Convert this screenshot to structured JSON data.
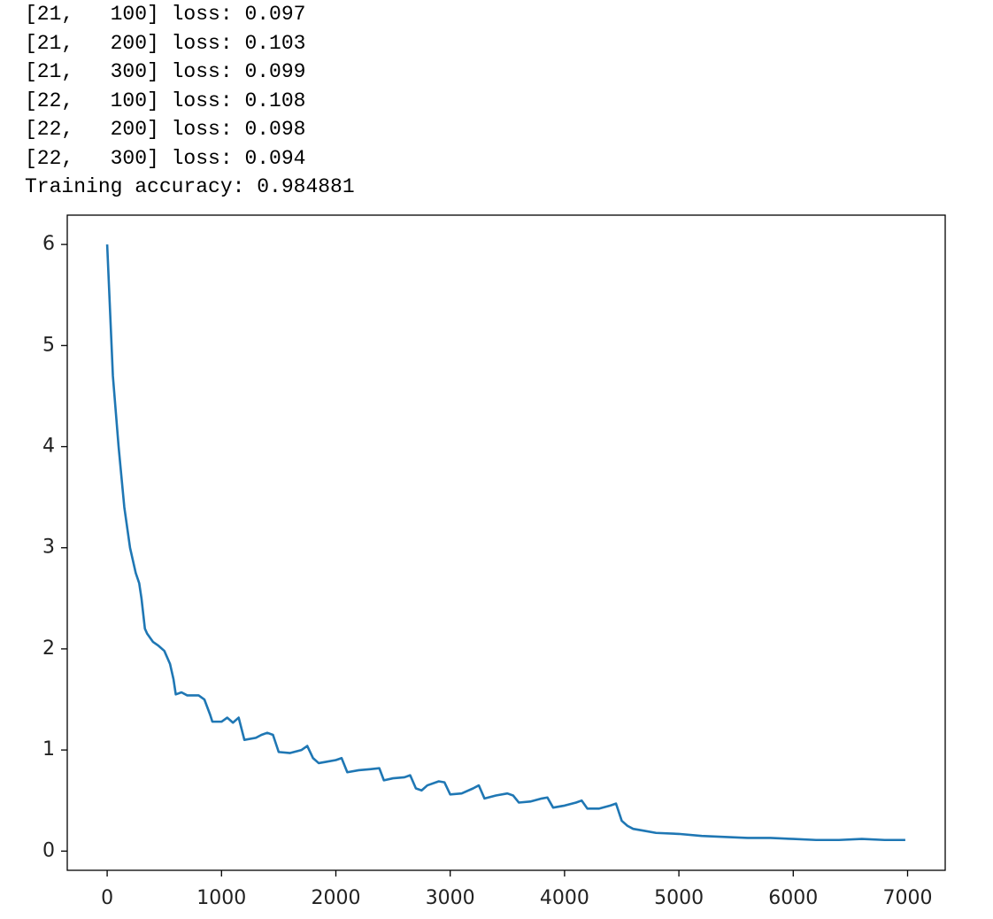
{
  "log": [
    "[21,   100] loss: 0.097",
    "[21,   200] loss: 0.103",
    "[21,   300] loss: 0.099",
    "[22,   100] loss: 0.108",
    "[22,   200] loss: 0.098",
    "[22,   300] loss: 0.094",
    "Training accuracy: 0.984881"
  ],
  "chart_data": {
    "type": "line",
    "x": [
      0,
      50,
      100,
      150,
      200,
      250,
      280,
      300,
      330,
      350,
      400,
      450,
      500,
      550,
      580,
      600,
      650,
      700,
      800,
      850,
      900,
      920,
      1000,
      1050,
      1100,
      1150,
      1200,
      1300,
      1350,
      1400,
      1450,
      1500,
      1600,
      1700,
      1750,
      1800,
      1850,
      1900,
      2000,
      2050,
      2100,
      2200,
      2300,
      2380,
      2420,
      2500,
      2600,
      2650,
      2700,
      2750,
      2800,
      2900,
      2950,
      3000,
      3100,
      3200,
      3250,
      3300,
      3400,
      3500,
      3550,
      3600,
      3700,
      3800,
      3850,
      3900,
      4000,
      4100,
      4150,
      4200,
      4300,
      4400,
      4450,
      4500,
      4550,
      4600,
      4700,
      4800,
      5000,
      5200,
      5400,
      5600,
      5800,
      6000,
      6200,
      6400,
      6600,
      6800,
      6980
    ],
    "series": [
      {
        "color": "#1f77b4",
        "values": [
          6.0,
          4.7,
          4.0,
          3.4,
          3.0,
          2.75,
          2.65,
          2.5,
          2.2,
          2.15,
          2.07,
          2.03,
          1.98,
          1.85,
          1.7,
          1.55,
          1.57,
          1.54,
          1.54,
          1.5,
          1.35,
          1.28,
          1.28,
          1.32,
          1.27,
          1.32,
          1.1,
          1.12,
          1.15,
          1.17,
          1.15,
          0.98,
          0.97,
          1.0,
          1.04,
          0.92,
          0.87,
          0.88,
          0.9,
          0.92,
          0.78,
          0.8,
          0.81,
          0.82,
          0.7,
          0.72,
          0.73,
          0.75,
          0.62,
          0.6,
          0.65,
          0.69,
          0.68,
          0.56,
          0.57,
          0.62,
          0.65,
          0.52,
          0.55,
          0.57,
          0.55,
          0.48,
          0.49,
          0.52,
          0.53,
          0.43,
          0.45,
          0.48,
          0.5,
          0.42,
          0.42,
          0.45,
          0.47,
          0.3,
          0.25,
          0.22,
          0.2,
          0.18,
          0.17,
          0.15,
          0.14,
          0.13,
          0.13,
          0.12,
          0.11,
          0.11,
          0.12,
          0.11,
          0.11
        ]
      }
    ],
    "xlim": [
      -349,
      7329
    ],
    "ylim": [
      -0.19,
      6.29
    ],
    "xticks": [
      0,
      1000,
      2000,
      3000,
      4000,
      5000,
      6000,
      7000
    ],
    "yticks": [
      0,
      1,
      2,
      3,
      4,
      5,
      6
    ]
  }
}
